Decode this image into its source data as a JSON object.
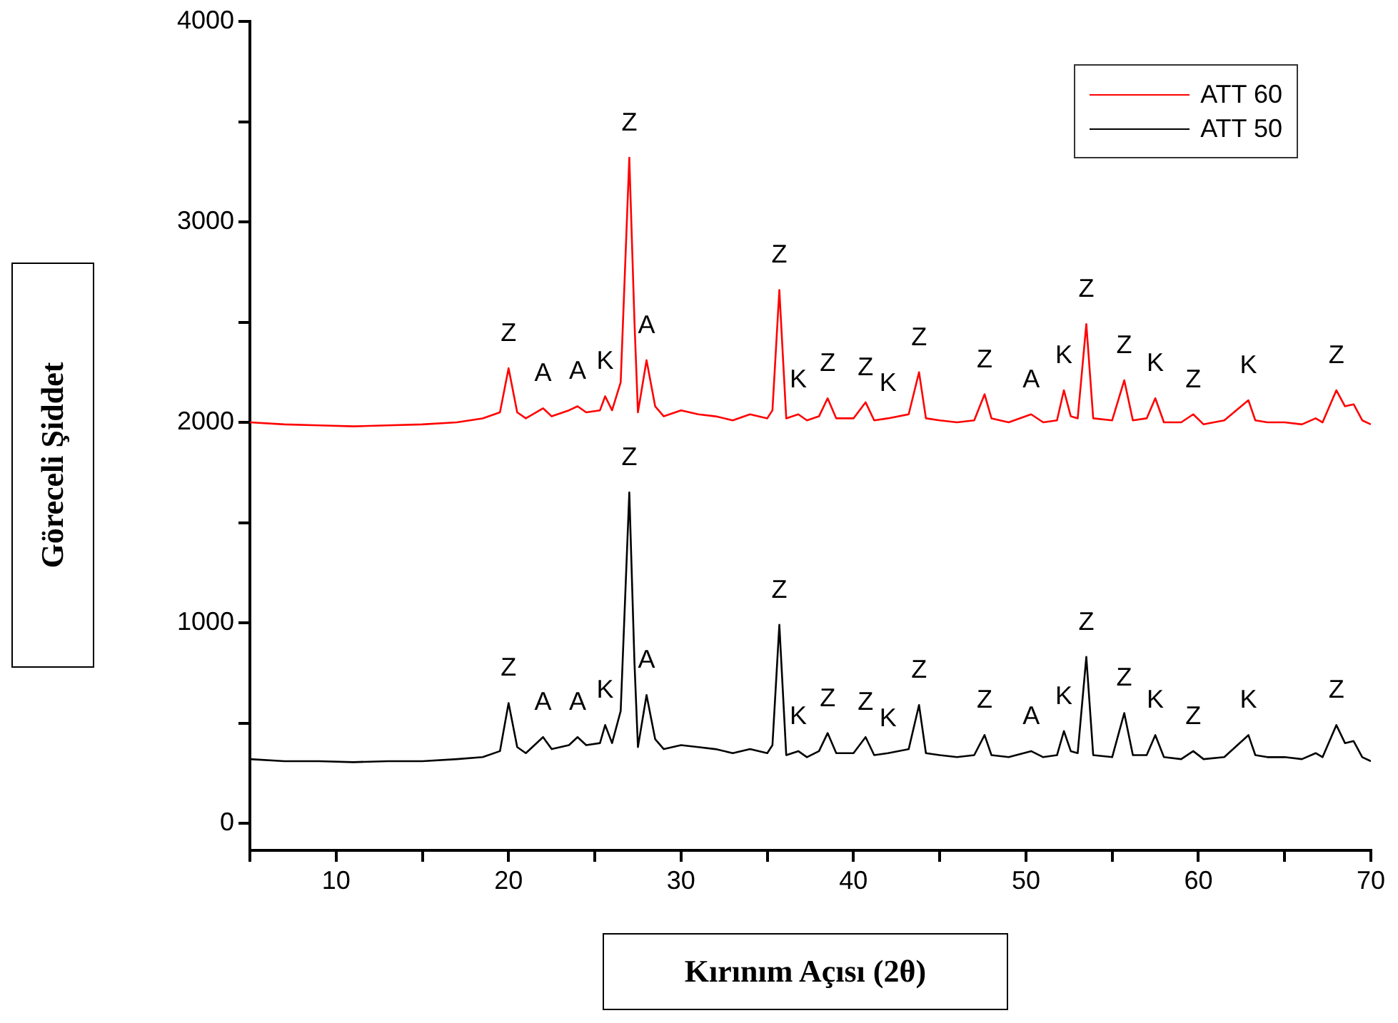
{
  "chart_data": {
    "type": "line",
    "xlabel": "Kırınım Açısı (2θ)",
    "ylabel": "Göreceli Şiddet",
    "legend": "top right",
    "grid": false,
    "xlim": [
      5,
      70
    ],
    "ylim": [
      -135,
      4000
    ],
    "xticks": [
      {
        "value": 5,
        "label": null
      },
      10,
      {
        "value": 15,
        "label": null
      },
      20,
      {
        "value": 25,
        "label": null
      },
      30,
      {
        "value": 35,
        "label": null
      },
      40,
      {
        "value": 45,
        "label": null
      },
      50,
      {
        "value": 55,
        "label": null
      },
      60,
      {
        "value": 65,
        "label": null
      },
      70
    ],
    "yticks": [
      0,
      {
        "value": 500,
        "label": null
      },
      1000,
      {
        "value": 1500,
        "label": null
      },
      2000,
      {
        "value": 2500,
        "label": null
      },
      3000,
      {
        "value": 3500,
        "label": null
      },
      4000
    ],
    "series": [
      {
        "name": "ATT 60",
        "color": "#ff0000",
        "x": [
          5,
          7,
          9,
          11,
          13,
          15,
          17,
          18.5,
          19.5,
          20.0,
          20.5,
          21,
          22,
          22.5,
          23.5,
          24,
          24.5,
          25.3,
          25.6,
          26,
          26.5,
          27.0,
          27.3,
          27.5,
          28.0,
          28.5,
          29,
          30,
          31,
          32,
          33,
          34,
          35,
          35.3,
          35.7,
          36.1,
          36.8,
          37.3,
          38,
          38.5,
          39,
          40,
          40.7,
          41.2,
          42,
          43.2,
          43.8,
          44.2,
          45,
          46,
          47,
          47.6,
          48,
          49,
          50.3,
          51,
          51.8,
          52.2,
          52.6,
          53.0,
          53.5,
          53.9,
          55,
          55.7,
          56.2,
          57,
          57.5,
          58,
          59,
          59.7,
          60.3,
          61.5,
          62.9,
          63.3,
          64,
          65,
          66,
          66.8,
          67.2,
          68,
          68.5,
          69,
          69.5,
          70
        ],
        "values": [
          2000,
          1990,
          1985,
          1980,
          1985,
          1990,
          2000,
          2020,
          2050,
          2270,
          2050,
          2020,
          2070,
          2030,
          2060,
          2080,
          2050,
          2060,
          2130,
          2060,
          2200,
          3320,
          2500,
          2050,
          2310,
          2080,
          2030,
          2060,
          2040,
          2030,
          2010,
          2040,
          2020,
          2060,
          2660,
          2020,
          2040,
          2010,
          2030,
          2120,
          2020,
          2020,
          2100,
          2010,
          2020,
          2040,
          2250,
          2020,
          2010,
          2000,
          2010,
          2140,
          2020,
          2000,
          2040,
          2000,
          2010,
          2160,
          2030,
          2020,
          2490,
          2020,
          2010,
          2210,
          2010,
          2020,
          2120,
          2000,
          2000,
          2040,
          1990,
          2010,
          2110,
          2010,
          2000,
          2000,
          1990,
          2020,
          2000,
          2160,
          2080,
          2090,
          2010,
          1990
        ]
      },
      {
        "name": "ATT 50",
        "color": "#000000",
        "x": [
          5,
          7,
          9,
          11,
          13,
          15,
          17,
          18.5,
          19.5,
          20.0,
          20.5,
          21,
          22,
          22.5,
          23.5,
          24,
          24.5,
          25.3,
          25.6,
          26,
          26.5,
          27.0,
          27.3,
          27.5,
          28.0,
          28.5,
          29,
          30,
          31,
          32,
          33,
          34,
          35,
          35.3,
          35.7,
          36.1,
          36.8,
          37.3,
          38,
          38.5,
          39,
          40,
          40.7,
          41.2,
          42,
          43.2,
          43.8,
          44.2,
          45,
          46,
          47,
          47.6,
          48,
          49,
          50.3,
          51,
          51.8,
          52.2,
          52.6,
          53.0,
          53.5,
          53.9,
          55,
          55.7,
          56.2,
          57,
          57.5,
          58,
          59,
          59.7,
          60.3,
          61.5,
          62.9,
          63.3,
          64,
          65,
          66,
          66.8,
          67.2,
          68,
          68.5,
          69,
          69.5,
          70
        ],
        "values": [
          320,
          310,
          310,
          305,
          310,
          310,
          320,
          330,
          360,
          600,
          380,
          350,
          430,
          370,
          390,
          430,
          390,
          400,
          490,
          400,
          560,
          1650,
          800,
          380,
          640,
          420,
          370,
          390,
          380,
          370,
          350,
          370,
          350,
          390,
          990,
          340,
          360,
          330,
          360,
          450,
          350,
          350,
          430,
          340,
          350,
          370,
          590,
          350,
          340,
          330,
          340,
          440,
          340,
          330,
          360,
          330,
          340,
          460,
          360,
          350,
          830,
          340,
          330,
          550,
          340,
          340,
          440,
          330,
          320,
          360,
          320,
          330,
          440,
          340,
          330,
          330,
          320,
          350,
          330,
          490,
          400,
          410,
          330,
          310
        ]
      }
    ],
    "annotations": [
      {
        "text": "Z",
        "x": 20.0,
        "y": 2270
      },
      {
        "text": "A",
        "x": 22,
        "y": 2070
      },
      {
        "text": "A",
        "x": 24,
        "y": 2080
      },
      {
        "text": "K",
        "x": 25.6,
        "y": 2130
      },
      {
        "text": "Z",
        "x": 27.0,
        "y": 3320
      },
      {
        "text": "A",
        "x": 28.0,
        "y": 2310
      },
      {
        "text": "Z",
        "x": 35.7,
        "y": 2660
      },
      {
        "text": "K",
        "x": 36.8,
        "y": 2040
      },
      {
        "text": "Z",
        "x": 38.5,
        "y": 2120
      },
      {
        "text": "Z",
        "x": 40.7,
        "y": 2100
      },
      {
        "text": "K",
        "x": 42,
        "y": 2020
      },
      {
        "text": "Z",
        "x": 43.8,
        "y": 2250
      },
      {
        "text": "Z",
        "x": 47.6,
        "y": 2140
      },
      {
        "text": "A",
        "x": 50.3,
        "y": 2040
      },
      {
        "text": "K",
        "x": 52.2,
        "y": 2160
      },
      {
        "text": "Z",
        "x": 53.5,
        "y": 2490
      },
      {
        "text": "Z",
        "x": 55.7,
        "y": 2210
      },
      {
        "text": "K",
        "x": 57.5,
        "y": 2120
      },
      {
        "text": "Z",
        "x": 59.7,
        "y": 2040
      },
      {
        "text": "K",
        "x": 62.9,
        "y": 2110
      },
      {
        "text": "Z",
        "x": 68,
        "y": 2160
      },
      {
        "text": "Z",
        "x": 20.0,
        "y": 600
      },
      {
        "text": "A",
        "x": 22,
        "y": 430
      },
      {
        "text": "A",
        "x": 24,
        "y": 430
      },
      {
        "text": "K",
        "x": 25.6,
        "y": 490
      },
      {
        "text": "Z",
        "x": 27.0,
        "y": 1650
      },
      {
        "text": "A",
        "x": 28.0,
        "y": 640
      },
      {
        "text": "Z",
        "x": 35.7,
        "y": 990
      },
      {
        "text": "K",
        "x": 36.8,
        "y": 360
      },
      {
        "text": "Z",
        "x": 38.5,
        "y": 450
      },
      {
        "text": "Z",
        "x": 40.7,
        "y": 430
      },
      {
        "text": "K",
        "x": 42,
        "y": 350
      },
      {
        "text": "Z",
        "x": 43.8,
        "y": 590
      },
      {
        "text": "Z",
        "x": 47.6,
        "y": 440
      },
      {
        "text": "A",
        "x": 50.3,
        "y": 360
      },
      {
        "text": "K",
        "x": 52.2,
        "y": 460
      },
      {
        "text": "Z",
        "x": 53.5,
        "y": 830
      },
      {
        "text": "Z",
        "x": 55.7,
        "y": 550
      },
      {
        "text": "K",
        "x": 57.5,
        "y": 440
      },
      {
        "text": "Z",
        "x": 59.7,
        "y": 360
      },
      {
        "text": "K",
        "x": 62.9,
        "y": 440
      },
      {
        "text": "Z",
        "x": 68,
        "y": 490
      }
    ]
  }
}
